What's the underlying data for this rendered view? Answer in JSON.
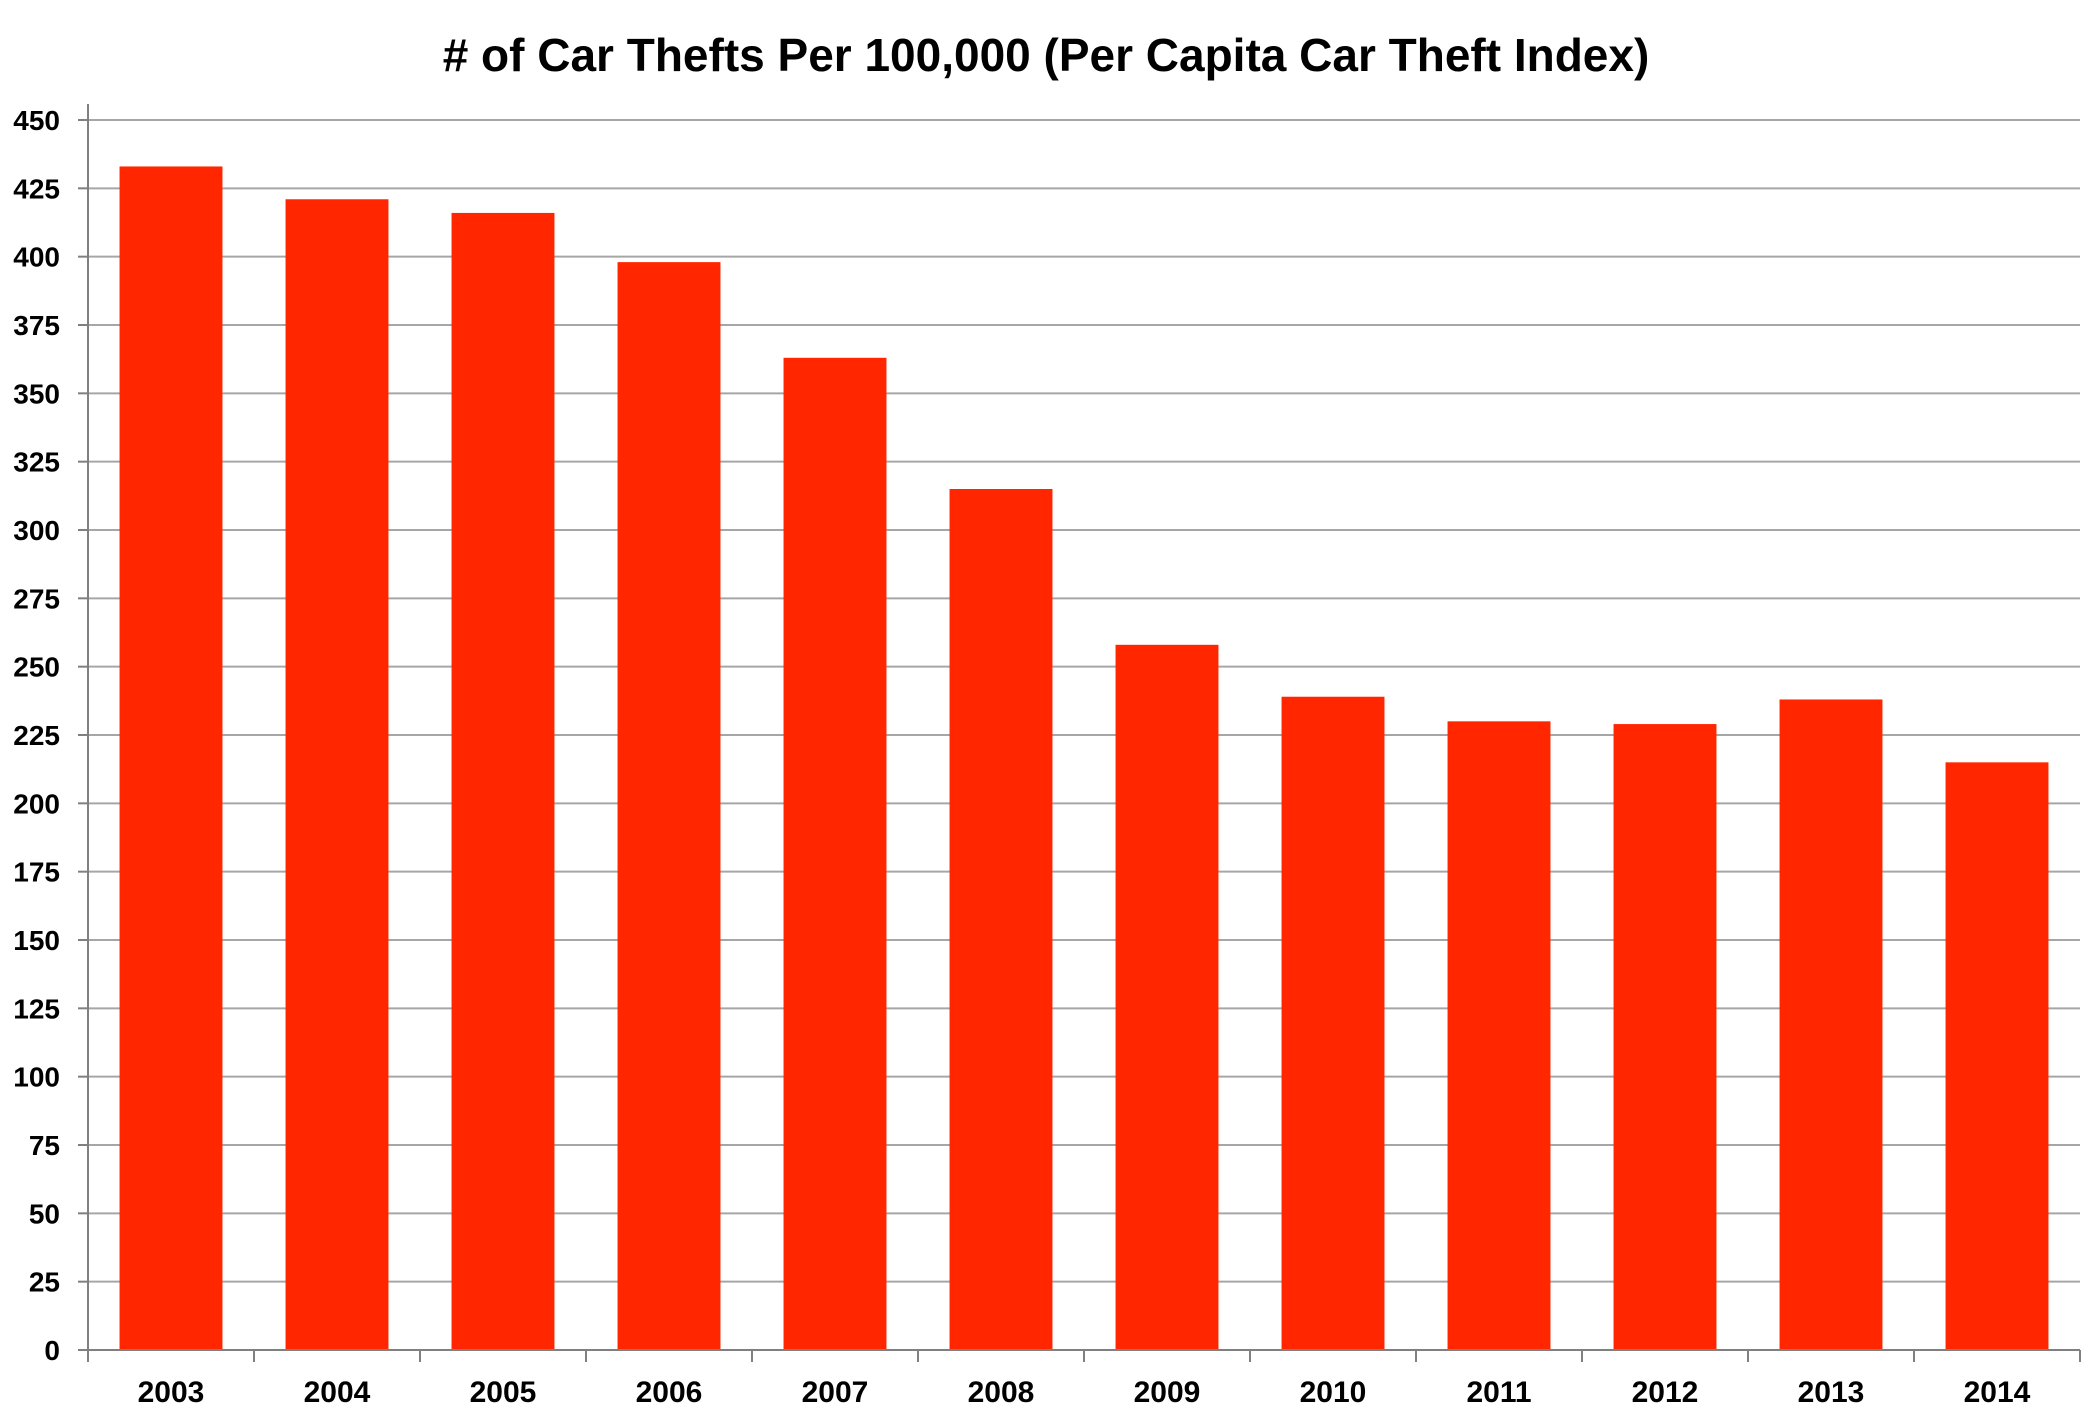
{
  "chart_data": {
    "type": "bar",
    "title": "# of Car Thefts Per 100,000 (Per Capita Car Theft Index)",
    "xlabel": "",
    "ylabel": "",
    "categories": [
      "2003",
      "2004",
      "2005",
      "2006",
      "2007",
      "2008",
      "2009",
      "2010",
      "2011",
      "2012",
      "2013",
      "2014"
    ],
    "values": [
      433,
      421,
      416,
      398,
      363,
      315,
      258,
      239,
      230,
      229,
      238,
      215
    ],
    "ylim": [
      0,
      450
    ],
    "yticks": [
      0,
      25,
      50,
      75,
      100,
      125,
      150,
      175,
      200,
      225,
      250,
      275,
      300,
      325,
      350,
      375,
      400,
      425,
      450
    ],
    "grid": true,
    "legend": "none",
    "bar_color": "#FF2600",
    "grid_color": "#A6A6A6",
    "axis_color": "#808080"
  }
}
